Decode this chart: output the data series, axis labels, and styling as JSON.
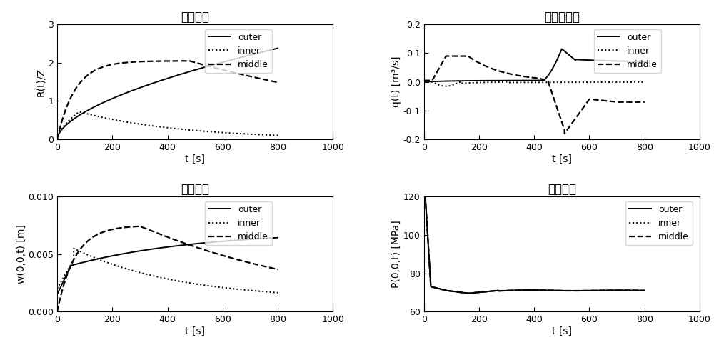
{
  "title1": "裂缝半径",
  "title2": "入口流入量",
  "title3": "裂缝宽度",
  "title4": "井筒压力",
  "xlabel": "t [s]",
  "ylabel1": "R(t)/Z",
  "ylabel2": "q(t) [m³/s]",
  "ylabel3": "w(0,0,t) [m]",
  "ylabel4": "P(0,0,t) [MPa]",
  "xlim": [
    0,
    1000
  ],
  "ylim1": [
    0,
    3
  ],
  "ylim2": [
    -0.2,
    0.2
  ],
  "ylim3": [
    0,
    0.01
  ],
  "ylim4": [
    60,
    120
  ],
  "xticks": [
    0,
    200,
    400,
    600,
    800,
    1000
  ],
  "yticks1": [
    0,
    1,
    2,
    3
  ],
  "yticks2": [
    -0.2,
    -0.1,
    0,
    0.1,
    0.2
  ],
  "yticks3": [
    0,
    0.005,
    0.01
  ],
  "yticks4": [
    60,
    80,
    100,
    120
  ],
  "legend_labels": [
    "outer",
    "inner",
    "middle"
  ],
  "line_styles": [
    "-",
    ":",
    "--"
  ],
  "line_color": "black",
  "lw_solid": 1.4,
  "lw_dot": 1.4,
  "lw_dash": 1.6,
  "font_size_title": 12,
  "font_size_label": 10,
  "font_size_tick": 9,
  "font_size_legend": 9
}
